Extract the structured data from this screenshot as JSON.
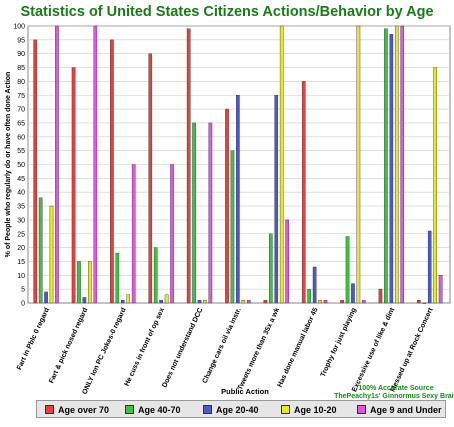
{
  "chart_data": {
    "type": "bar",
    "title": "Statistics of United States Citizens Actions/Behavior by Age",
    "xlabel": "Public Action",
    "ylabel": "% of People who regularly do or have often done Action",
    "ylim": [
      0,
      100
    ],
    "ytick_step": 5,
    "grid": true,
    "legend_position": "bottom",
    "annotation": [
      "100% Accurate Source",
      "ThePeachy1s' Ginnormus Sexy Brain"
    ],
    "categories": [
      "Fart in Pblc 0 regard",
      "Fart & pick nosed regard",
      "ONLY Ion PC Jokes-0 regard",
      "He cuss in front of op sex",
      "Does not understand DCC",
      "Change cars oil via instr.",
      "Tweets more than 35x a wk",
      "Has done manual labor 45",
      "Trophy for just playing",
      "Excessive use of like & dint",
      "Messed up at Rock Concert"
    ],
    "series": [
      {
        "name": "Age over 70",
        "color": "#e8403a",
        "values": [
          95,
          85,
          95,
          90,
          99,
          70,
          1,
          80,
          1,
          5,
          1
        ]
      },
      {
        "name": "Age 40-70",
        "color": "#3fc23f",
        "values": [
          38,
          15,
          18,
          20,
          65,
          55,
          25,
          5,
          24,
          99,
          0
        ]
      },
      {
        "name": "Age 20-40",
        "color": "#4a58d4",
        "values": [
          4,
          2,
          1,
          1,
          1,
          75,
          75,
          13,
          7,
          97,
          26
        ]
      },
      {
        "name": "Age 10-20",
        "color": "#e8e82a",
        "values": [
          35,
          15,
          3,
          3,
          1,
          1,
          100,
          1,
          100,
          100,
          85
        ]
      },
      {
        "name": "Age 9 and Under",
        "color": "#e455e4",
        "values": [
          100,
          100,
          50,
          50,
          65,
          1,
          30,
          1,
          1,
          100,
          10
        ]
      }
    ]
  },
  "colors": {
    "title": "#1a7a1a",
    "annotation": "#1a8a1a",
    "plot_background": "#ffffff",
    "grid": "#cccccc"
  }
}
